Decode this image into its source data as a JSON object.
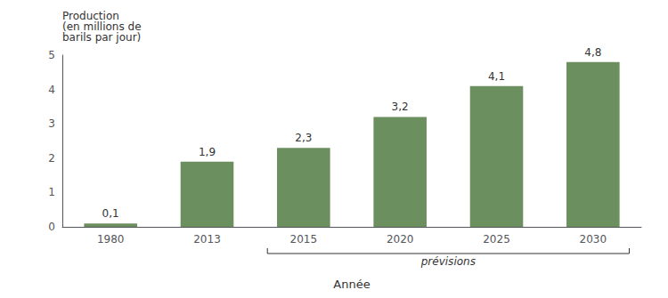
{
  "chart_data": {
    "type": "bar",
    "categories": [
      "1980",
      "2013",
      "2015",
      "2020",
      "2025",
      "2030"
    ],
    "values": [
      0.1,
      1.9,
      2.3,
      3.2,
      4.1,
      4.8
    ],
    "value_labels": [
      "0,1",
      "1,9",
      "2,3",
      "3,2",
      "4,1",
      "4,8"
    ],
    "data_labels": true,
    "color": "#6b8f5e",
    "ylim": [
      0,
      5
    ],
    "yticks": [
      0,
      1,
      2,
      3,
      4,
      5
    ],
    "ylabel": "Production\n(en millions de\nbarils par jour)",
    "xlabel": "Année",
    "annotations": [
      {
        "text": "prévisions",
        "from": "2015",
        "to": "2030"
      }
    ],
    "grid": false
  }
}
